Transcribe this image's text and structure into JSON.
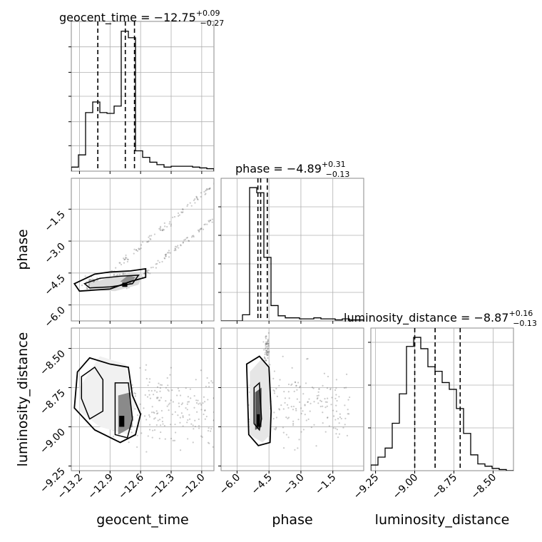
{
  "chart_data": {
    "type": "corner",
    "parameters": [
      "geocent_time",
      "phase",
      "luminosity_distance"
    ],
    "titles": [
      {
        "param": "geocent_time",
        "median": "−12.75",
        "plus": "+0.09",
        "minus": "−0.27"
      },
      {
        "param": "phase",
        "median": "−4.89",
        "plus": "+0.31",
        "minus": "−0.13"
      },
      {
        "param": "luminosity_distance",
        "median": "−8.87",
        "plus": "+0.16",
        "minus": "−0.13"
      }
    ],
    "axes": {
      "geocent_time": {
        "range": [
          -13.28,
          -11.88
        ],
        "ticks": [
          -13.2,
          -12.9,
          -12.6,
          -12.3,
          -12.0
        ],
        "tick_labels": [
          "−13.2",
          "−12.9",
          "−12.6",
          "−12.3",
          "−12.0"
        ],
        "xlabel": "geocent_time"
      },
      "phase": {
        "range": [
          -6.75,
          -0.05
        ],
        "ticks": [
          -6.0,
          -4.5,
          -3.0,
          -1.5
        ],
        "tick_labels": [
          "−6.0",
          "−4.5",
          "−3.0",
          "−1.5"
        ],
        "ylabel": "phase",
        "xlabel": "phase"
      },
      "luminosity_distance": {
        "range": [
          -9.28,
          -8.37
        ],
        "ticks": [
          -9.25,
          -9.0,
          -8.75,
          -8.5
        ],
        "tick_labels": [
          "−9.25",
          "−9.00",
          "−8.75",
          "−8.50"
        ],
        "ylabel": "luminosity_distance",
        "xlabel": "luminosity_distance"
      }
    },
    "histograms": [
      {
        "param": "geocent_time",
        "bin_edges": [
          -13.28,
          -13.21,
          -13.14,
          -13.07,
          -13.0,
          -12.93,
          -12.86,
          -12.79,
          -12.72,
          -12.65,
          -12.58,
          -12.51,
          -12.44,
          -12.37,
          -12.3,
          -12.23,
          -12.16,
          -12.09,
          -12.02,
          -11.95,
          -11.88
        ],
        "counts": [
          5,
          20,
          72,
          85,
          72,
          71,
          80,
          172,
          164,
          25,
          17,
          11,
          8,
          5,
          6,
          6,
          6,
          5,
          4,
          3
        ],
        "quantile_lines": [
          -13.02,
          -12.75,
          -12.66
        ]
      },
      {
        "param": "phase",
        "bin_edges": [
          -6.75,
          -6.415,
          -6.08,
          -5.745,
          -5.41,
          -5.075,
          -4.74,
          -4.405,
          -4.07,
          -3.735,
          -3.4,
          -3.065,
          -2.73,
          -2.395,
          -2.06,
          -1.725,
          -1.39,
          -1.055,
          -0.72,
          -0.385,
          -0.05
        ],
        "counts": [
          0,
          0,
          0,
          6,
          130,
          125,
          62,
          15,
          5,
          3,
          3,
          2,
          2,
          3,
          2,
          2,
          1,
          2,
          1,
          1
        ],
        "quantile_lines": [
          -5.02,
          -4.89,
          -4.58
        ]
      },
      {
        "param": "luminosity_distance",
        "bin_edges": [
          -9.28,
          -9.2345,
          -9.189,
          -9.1435,
          -9.098,
          -9.0525,
          -9.007,
          -8.9615,
          -8.916,
          -8.8705,
          -8.825,
          -8.7795,
          -8.734,
          -8.6885,
          -8.643,
          -8.5975,
          -8.552,
          -8.5065,
          -8.461,
          -8.4155,
          -8.37
        ],
        "counts": [
          5,
          12,
          20,
          42,
          68,
          110,
          118,
          108,
          92,
          88,
          78,
          72,
          55,
          33,
          14,
          6,
          4,
          2,
          1,
          0
        ],
        "quantile_lines": [
          -9.0,
          -8.87,
          -8.71
        ]
      }
    ],
    "grid": true
  }
}
